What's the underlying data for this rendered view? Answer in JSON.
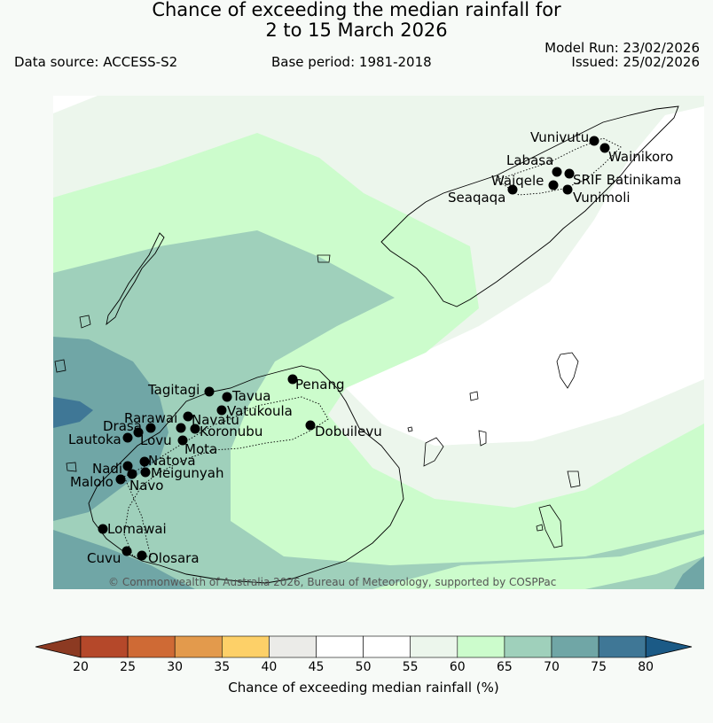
{
  "title": {
    "line1": "Chance of exceeding the median rainfall for",
    "line2": "2 to 15 March 2026"
  },
  "meta": {
    "data_source": "Data source: ACCESS-S2",
    "base_period": "Base period: 1981-2018",
    "model_run": "Model Run: 23/02/2026",
    "issued": "Issued: 25/02/2026"
  },
  "map": {
    "copyright": "© Commonwealth of Australia 2026, Bureau of Meteorology, supported by COSPPac",
    "places": [
      {
        "name": "Vunivutu"
      },
      {
        "name": "Wainikoro"
      },
      {
        "name": "Labasa"
      },
      {
        "name": "SRIF Batinikama"
      },
      {
        "name": "Waiqele"
      },
      {
        "name": "Seaqaqa"
      },
      {
        "name": "Vunimoli"
      },
      {
        "name": "Penang"
      },
      {
        "name": "Tagitagi"
      },
      {
        "name": "Tavua"
      },
      {
        "name": "Vatukoula"
      },
      {
        "name": "Rarawai"
      },
      {
        "name": "Navatu"
      },
      {
        "name": "Drasa"
      },
      {
        "name": "Koronubu"
      },
      {
        "name": "Lautoka"
      },
      {
        "name": "Lovu"
      },
      {
        "name": "Mota"
      },
      {
        "name": "Dobuilevu"
      },
      {
        "name": "Natova"
      },
      {
        "name": "Nadi"
      },
      {
        "name": "Meigunyah"
      },
      {
        "name": "Malolo"
      },
      {
        "name": "Navo"
      },
      {
        "name": "Lomawai"
      },
      {
        "name": "Cuvu"
      },
      {
        "name": "Olosara"
      }
    ]
  },
  "colorbar": {
    "label": "Chance of exceeding median rainfall (%)",
    "ticks": [
      "20",
      "25",
      "30",
      "35",
      "40",
      "45",
      "50",
      "55",
      "60",
      "65",
      "70",
      "75",
      "80"
    ],
    "colors": [
      "#8c3a22",
      "#b5482a",
      "#cf6a35",
      "#e39a4c",
      "#fdd068",
      "#ebebe8",
      "#ffffff",
      "#ffffff",
      "#ecf6ec",
      "#ccfccc",
      "#9fd0bb",
      "#70a6a6",
      "#3f7796",
      "#1b5a86"
    ]
  }
}
